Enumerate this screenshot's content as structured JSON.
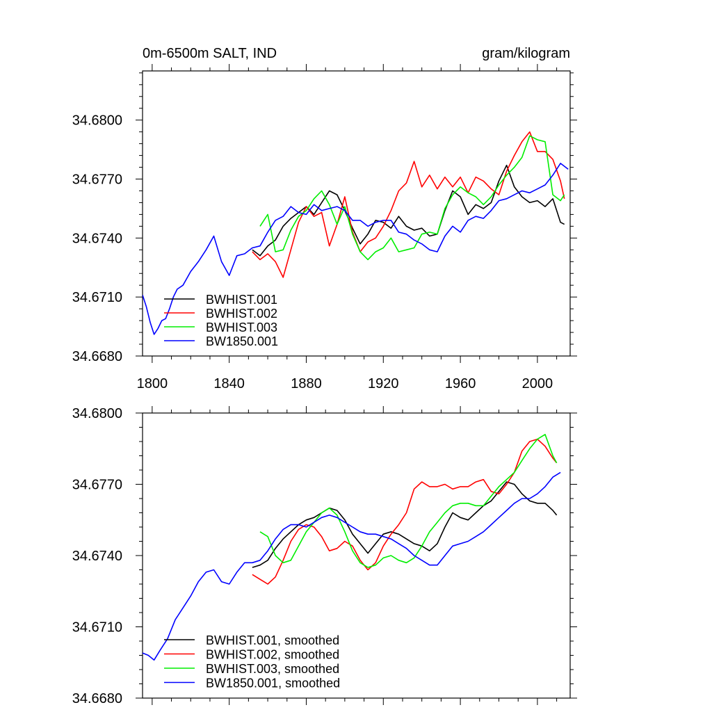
{
  "chart_data": [
    {
      "type": "line",
      "title_left": "0m-6500m SALT, IND",
      "title_right": "gram/kilogram",
      "xlim": [
        1795,
        2017
      ],
      "ylim": [
        34.668,
        34.6825
      ],
      "x_ticks": [
        1800,
        1840,
        1880,
        1920,
        1960,
        2000
      ],
      "y_ticks": [
        34.668,
        34.671,
        34.674,
        34.677,
        34.68
      ],
      "y_tick_labels": [
        "34.6680",
        "34.6710",
        "34.6740",
        "34.6770",
        "34.6800"
      ],
      "legend_position": "bottom-left",
      "series": [
        {
          "name": "BWHIST.001",
          "color": "#000000",
          "x": [
            1852,
            1856,
            1860,
            1864,
            1868,
            1872,
            1876,
            1880,
            1884,
            1888,
            1892,
            1896,
            1900,
            1904,
            1908,
            1912,
            1916,
            1920,
            1924,
            1928,
            1932,
            1936,
            1940,
            1944,
            1948,
            1952,
            1956,
            1960,
            1964,
            1968,
            1972,
            1976,
            1980,
            1984,
            1988,
            1992,
            1996,
            2000,
            2004,
            2008,
            2012,
            2014
          ],
          "y": [
            34.6734,
            34.6731,
            34.6736,
            34.6739,
            34.6746,
            34.675,
            34.6753,
            34.6756,
            34.6752,
            34.6758,
            34.6764,
            34.6762,
            34.6754,
            34.6745,
            34.6737,
            34.6742,
            34.6749,
            34.6748,
            34.6745,
            34.6751,
            34.6746,
            34.6744,
            34.6745,
            34.6741,
            34.6742,
            34.6754,
            34.6764,
            34.6761,
            34.6752,
            34.6757,
            34.6755,
            34.6758,
            34.6769,
            34.6777,
            34.6766,
            34.6761,
            34.6758,
            34.6759,
            34.6756,
            34.676,
            34.6748,
            34.6747
          ]
        },
        {
          "name": "BWHIST.002",
          "color": "#ff0000",
          "x": [
            1852,
            1856,
            1860,
            1864,
            1868,
            1872,
            1876,
            1880,
            1884,
            1888,
            1892,
            1896,
            1900,
            1904,
            1908,
            1912,
            1916,
            1920,
            1924,
            1928,
            1932,
            1936,
            1940,
            1944,
            1948,
            1952,
            1956,
            1960,
            1964,
            1968,
            1972,
            1976,
            1980,
            1984,
            1988,
            1992,
            1996,
            2000,
            2004,
            2008,
            2012,
            2014
          ],
          "y": [
            34.6733,
            34.6729,
            34.6732,
            34.6728,
            34.672,
            34.6734,
            34.6748,
            34.6756,
            34.6751,
            34.6753,
            34.6736,
            34.6747,
            34.6761,
            34.6743,
            34.6733,
            34.6738,
            34.674,
            34.6746,
            34.6754,
            34.6764,
            34.6768,
            34.6779,
            34.6766,
            34.6772,
            34.6765,
            34.6771,
            34.6766,
            34.6771,
            34.6763,
            34.6771,
            34.6769,
            34.6765,
            34.6762,
            34.6774,
            34.6782,
            34.6789,
            34.6794,
            34.6784,
            34.6784,
            34.678,
            34.6769,
            34.676
          ]
        },
        {
          "name": "BWHIST.003",
          "color": "#00ee00",
          "x": [
            1856,
            1860,
            1864,
            1868,
            1872,
            1876,
            1880,
            1884,
            1888,
            1892,
            1896,
            1900,
            1904,
            1908,
            1912,
            1916,
            1920,
            1924,
            1928,
            1932,
            1936,
            1940,
            1944,
            1948,
            1952,
            1956,
            1960,
            1964,
            1968,
            1972,
            1976,
            1980,
            1984,
            1988,
            1992,
            1996,
            2000,
            2004,
            2008,
            2012,
            2014
          ],
          "y": [
            34.6746,
            34.6752,
            34.6733,
            34.6734,
            34.6744,
            34.6751,
            34.6754,
            34.676,
            34.6764,
            34.6757,
            34.6747,
            34.6756,
            34.6742,
            34.6733,
            34.6729,
            34.6733,
            34.6735,
            34.674,
            34.6733,
            34.6734,
            34.6735,
            34.6742,
            34.6743,
            34.6742,
            34.6755,
            34.6762,
            34.6766,
            34.6763,
            34.6761,
            34.6757,
            34.6761,
            34.6767,
            34.6772,
            34.6776,
            34.6781,
            34.6792,
            34.679,
            34.6789,
            34.6762,
            34.6759,
            34.6762
          ]
        },
        {
          "name": "BW1850.001",
          "color": "#0000ff",
          "x": [
            1795,
            1797,
            1799,
            1801,
            1803,
            1805,
            1807,
            1809,
            1811,
            1813,
            1816,
            1820,
            1824,
            1828,
            1832,
            1836,
            1840,
            1844,
            1848,
            1852,
            1856,
            1860,
            1864,
            1868,
            1872,
            1876,
            1880,
            1884,
            1888,
            1892,
            1896,
            1900,
            1904,
            1908,
            1912,
            1916,
            1920,
            1924,
            1928,
            1932,
            1936,
            1940,
            1944,
            1948,
            1952,
            1956,
            1960,
            1964,
            1968,
            1972,
            1976,
            1980,
            1984,
            1988,
            1992,
            1996,
            2000,
            2004,
            2008,
            2012,
            2016
          ],
          "y": [
            34.6711,
            34.6705,
            34.6697,
            34.6691,
            34.6694,
            34.6698,
            34.6699,
            34.6704,
            34.671,
            34.6714,
            34.6716,
            34.6723,
            34.6728,
            34.6734,
            34.6741,
            34.6728,
            34.6721,
            34.6731,
            34.6732,
            34.6735,
            34.6736,
            34.6743,
            34.6749,
            34.6751,
            34.6756,
            34.6753,
            34.6752,
            34.6757,
            34.6754,
            34.6755,
            34.6756,
            34.6754,
            34.6749,
            34.6749,
            34.6746,
            34.6748,
            34.6749,
            34.6749,
            34.6743,
            34.6742,
            34.6739,
            34.6737,
            34.6734,
            34.6733,
            34.6741,
            34.6746,
            34.6743,
            34.6749,
            34.6751,
            34.675,
            34.6754,
            34.6759,
            34.676,
            34.6762,
            34.6764,
            34.6763,
            34.6765,
            34.6767,
            34.6772,
            34.6778,
            34.6775
          ]
        }
      ]
    },
    {
      "type": "line",
      "xlim": [
        1795,
        2017
      ],
      "ylim": [
        34.668,
        34.68
      ],
      "x_ticks": [
        1800,
        1840,
        1880,
        1920,
        1960,
        2000
      ],
      "y_ticks": [
        34.668,
        34.671,
        34.674,
        34.677,
        34.68
      ],
      "y_tick_labels": [
        "34.6680",
        "34.6710",
        "34.6740",
        "34.6770",
        "34.6800"
      ],
      "legend_position": "bottom-left",
      "series": [
        {
          "name": "BWHIST.001, smoothed",
          "color": "#000000",
          "x": [
            1852,
            1856,
            1860,
            1864,
            1868,
            1872,
            1876,
            1880,
            1884,
            1888,
            1892,
            1896,
            1900,
            1904,
            1908,
            1912,
            1916,
            1920,
            1924,
            1928,
            1932,
            1936,
            1940,
            1944,
            1948,
            1952,
            1956,
            1960,
            1964,
            1968,
            1972,
            1976,
            1980,
            1984,
            1988,
            1992,
            1996,
            2000,
            2004,
            2008,
            2010
          ],
          "y": [
            34.6735,
            34.6736,
            34.6738,
            34.6743,
            34.6747,
            34.675,
            34.6753,
            34.6755,
            34.6756,
            34.6758,
            34.676,
            34.6759,
            34.6755,
            34.6749,
            34.6745,
            34.6741,
            34.6745,
            34.6749,
            34.675,
            34.6749,
            34.6747,
            34.6745,
            34.6744,
            34.6742,
            34.6745,
            34.6752,
            34.6758,
            34.6756,
            34.6755,
            34.6758,
            34.6761,
            34.6763,
            34.6767,
            34.6771,
            34.677,
            34.6766,
            34.6763,
            34.6762,
            34.6762,
            34.6759,
            34.6757
          ]
        },
        {
          "name": "BWHIST.002, smoothed",
          "color": "#ff0000",
          "x": [
            1852,
            1856,
            1860,
            1864,
            1868,
            1872,
            1876,
            1880,
            1884,
            1888,
            1892,
            1896,
            1900,
            1904,
            1908,
            1912,
            1916,
            1920,
            1924,
            1928,
            1932,
            1936,
            1940,
            1944,
            1948,
            1952,
            1956,
            1960,
            1964,
            1968,
            1972,
            1976,
            1980,
            1984,
            1988,
            1992,
            1996,
            2000,
            2004,
            2008,
            2010
          ],
          "y": [
            34.6732,
            34.673,
            34.6728,
            34.6731,
            34.6738,
            34.6746,
            34.6751,
            34.6753,
            34.6752,
            34.6748,
            34.6742,
            34.6743,
            34.6746,
            34.6744,
            34.6738,
            34.6734,
            34.6737,
            34.6744,
            34.6749,
            34.6753,
            34.6758,
            34.6768,
            34.6771,
            34.6769,
            34.6769,
            34.677,
            34.6768,
            34.6769,
            34.6769,
            34.6771,
            34.6772,
            34.6767,
            34.6766,
            34.677,
            34.6775,
            34.6784,
            34.6788,
            34.6789,
            34.6786,
            34.6781,
            34.6779
          ]
        },
        {
          "name": "BWHIST.003, smoothed",
          "color": "#00ee00",
          "x": [
            1856,
            1860,
            1864,
            1868,
            1872,
            1876,
            1880,
            1884,
            1888,
            1892,
            1896,
            1900,
            1904,
            1908,
            1912,
            1916,
            1920,
            1924,
            1928,
            1932,
            1936,
            1940,
            1944,
            1948,
            1952,
            1956,
            1960,
            1964,
            1968,
            1972,
            1976,
            1980,
            1984,
            1988,
            1992,
            1996,
            2000,
            2004,
            2008,
            2010
          ],
          "y": [
            34.675,
            34.6748,
            34.674,
            34.6737,
            34.6738,
            34.6744,
            34.675,
            34.6754,
            34.6758,
            34.676,
            34.6757,
            34.675,
            34.6742,
            34.6737,
            34.6735,
            34.6736,
            34.6739,
            34.674,
            34.6738,
            34.6737,
            34.6739,
            34.6744,
            34.675,
            34.6754,
            34.6758,
            34.6761,
            34.6762,
            34.6762,
            34.6761,
            34.6761,
            34.6765,
            34.6769,
            34.6772,
            34.6775,
            34.678,
            34.6785,
            34.6789,
            34.6791,
            34.6782,
            34.6779
          ]
        },
        {
          "name": "BW1850.001, smoothed",
          "color": "#0000ff",
          "x": [
            1795,
            1798,
            1801,
            1804,
            1808,
            1812,
            1816,
            1820,
            1824,
            1828,
            1832,
            1836,
            1840,
            1844,
            1848,
            1852,
            1856,
            1860,
            1864,
            1868,
            1872,
            1876,
            1880,
            1884,
            1888,
            1892,
            1896,
            1900,
            1904,
            1908,
            1912,
            1916,
            1920,
            1924,
            1928,
            1932,
            1936,
            1940,
            1944,
            1948,
            1952,
            1956,
            1960,
            1964,
            1968,
            1972,
            1976,
            1980,
            1984,
            1988,
            1992,
            1996,
            2000,
            2004,
            2008,
            2012
          ],
          "y": [
            34.6699,
            34.6698,
            34.6696,
            34.67,
            34.6705,
            34.6713,
            34.6718,
            34.6723,
            34.6729,
            34.6733,
            34.6734,
            34.6729,
            34.6728,
            34.6733,
            34.6737,
            34.6737,
            34.6738,
            34.6742,
            34.6747,
            34.6751,
            34.6753,
            34.6753,
            34.6752,
            34.6754,
            34.6756,
            34.6757,
            34.6756,
            34.6754,
            34.6752,
            34.675,
            34.6749,
            34.6749,
            34.6748,
            34.6747,
            34.6745,
            34.6743,
            34.674,
            34.6738,
            34.6736,
            34.6736,
            34.674,
            34.6744,
            34.6745,
            34.6746,
            34.6748,
            34.675,
            34.6753,
            34.6756,
            34.6759,
            34.6762,
            34.6764,
            34.6764,
            34.6766,
            34.6769,
            34.6773,
            34.6775
          ]
        }
      ]
    }
  ]
}
